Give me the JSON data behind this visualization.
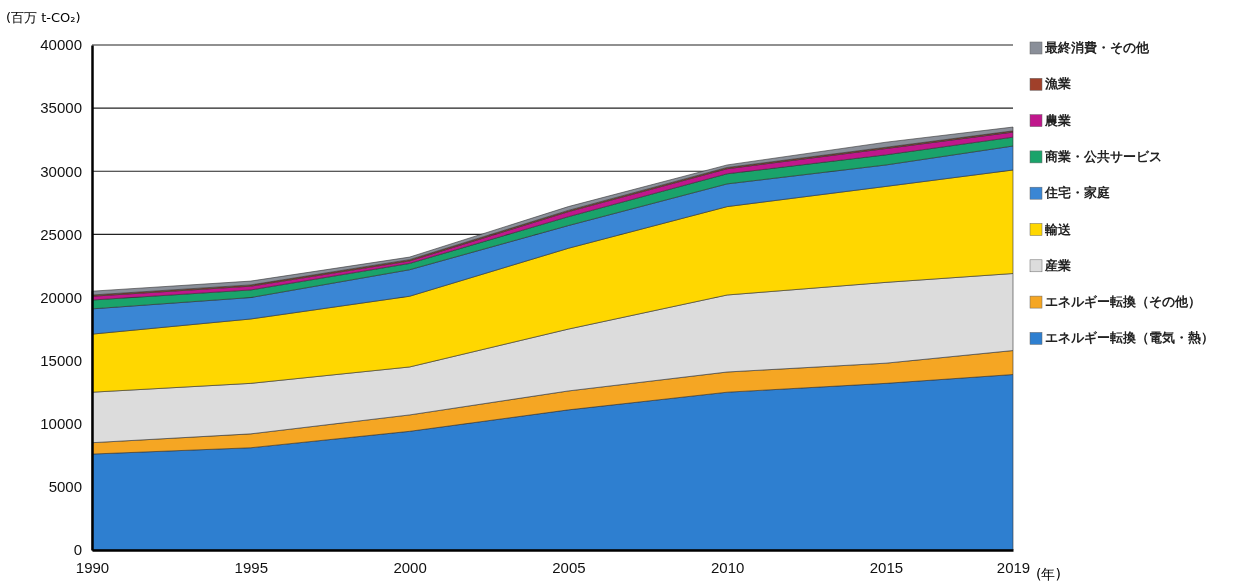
{
  "chart_data": {
    "type": "area",
    "stacked": true,
    "ylabel": "(百万 t-CO₂)",
    "xlabel": "(年)",
    "x": [
      1990,
      1995,
      2000,
      2005,
      2010,
      2015,
      2019
    ],
    "xlim": [
      1990,
      2019
    ],
    "xticks": [
      1990,
      1995,
      2000,
      2005,
      2010,
      2015,
      2019
    ],
    "ylim": [
      0,
      40000
    ],
    "yticks": [
      0,
      5000,
      10000,
      15000,
      20000,
      25000,
      30000,
      35000,
      40000
    ],
    "grid": "y",
    "legend": "right",
    "series": [
      {
        "name": "エネルギー転換（電気・熱）",
        "color": "#2e7fd0",
        "values": [
          7600,
          8100,
          9400,
          11100,
          12500,
          13200,
          13900
        ]
      },
      {
        "name": "エネルギー転換（その他）",
        "color": "#f5a623",
        "values": [
          900,
          1100,
          1300,
          1500,
          1600,
          1600,
          1900
        ]
      },
      {
        "name": "産業",
        "color": "#dcdcdc",
        "values": [
          4000,
          4000,
          3800,
          4900,
          6100,
          6400,
          6100
        ]
      },
      {
        "name": "輸送",
        "color": "#ffd700",
        "values": [
          4600,
          5100,
          5600,
          6400,
          7000,
          7600,
          8200
        ]
      },
      {
        "name": "住宅・家庭",
        "color": "#3a86d4",
        "values": [
          2000,
          1700,
          2100,
          1800,
          1800,
          1700,
          1900
        ]
      },
      {
        "name": "商業・公共サービス",
        "color": "#1aa36a",
        "values": [
          700,
          600,
          500,
          700,
          800,
          800,
          700
        ]
      },
      {
        "name": "農業",
        "color": "#c0178c",
        "values": [
          300,
          300,
          200,
          400,
          400,
          500,
          400
        ]
      },
      {
        "name": "漁業",
        "color": "#a0402a",
        "values": [
          100,
          100,
          100,
          100,
          100,
          100,
          100
        ]
      },
      {
        "name": "最終消費・その他",
        "color": "#8a8f99",
        "values": [
          300,
          300,
          200,
          300,
          200,
          400,
          300
        ]
      }
    ]
  }
}
